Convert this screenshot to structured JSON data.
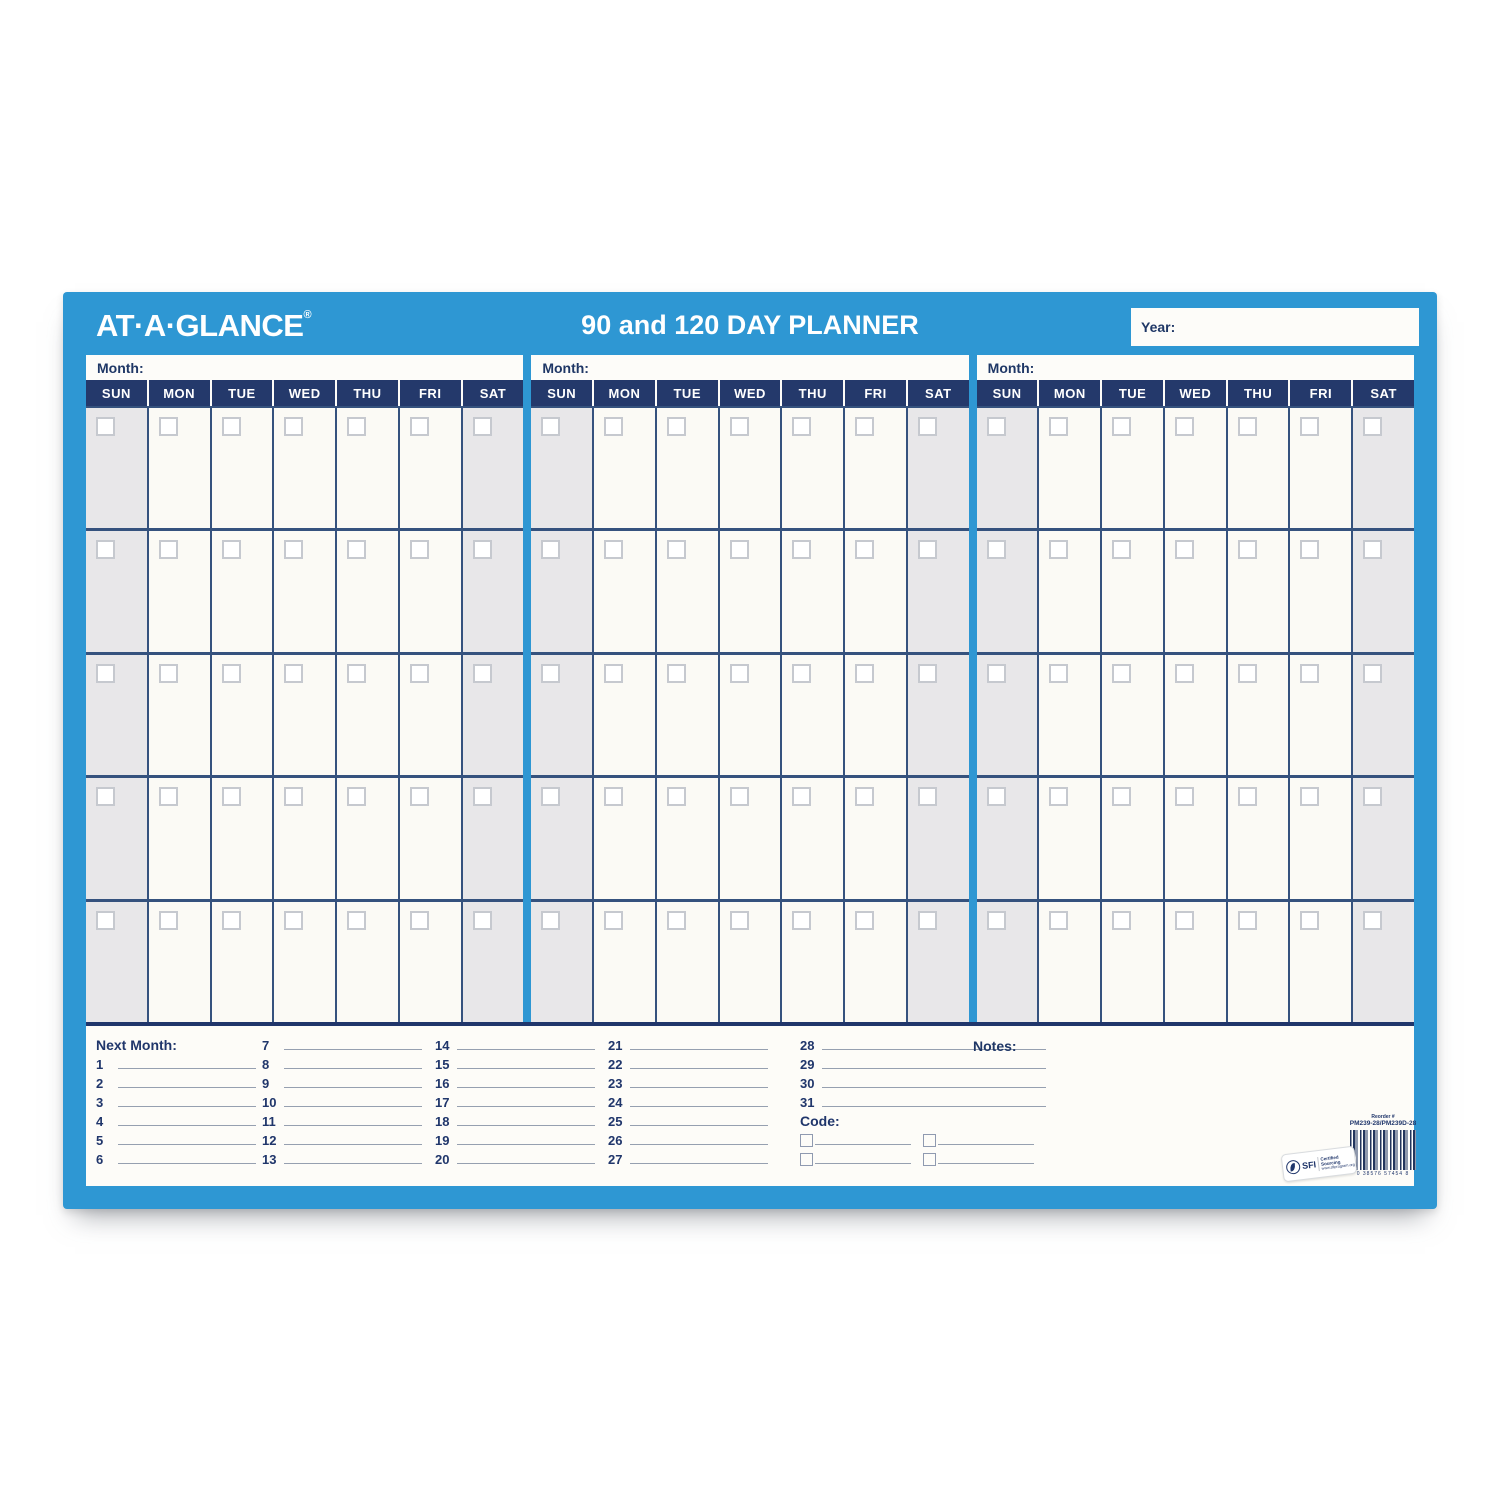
{
  "planner": {
    "brand": "AT·A·GLANCE",
    "brand_reg": "®",
    "title": "90 and 120 DAY PLANNER",
    "year_label": "Year:",
    "month_label": "Month:",
    "day_headers": [
      "SUN",
      "MON",
      "TUE",
      "WED",
      "THU",
      "FRI",
      "SAT"
    ],
    "months_count": 3,
    "weeks_per_month": 5,
    "colors": {
      "frame_blue": "#2e97d3",
      "header_navy": "#24396b",
      "grid_line_navy": "#35527e",
      "text_navy": "#1f3766",
      "weekend_gray": "#e8e7e9",
      "cell_white": "#fbfaf5"
    },
    "footer": {
      "columns": [
        {
          "header": "Next Month:",
          "numbers": [
            "1",
            "2",
            "3",
            "4",
            "5",
            "6"
          ]
        },
        {
          "numbers": [
            "7",
            "8",
            "9",
            "10",
            "11",
            "12",
            "13"
          ]
        },
        {
          "numbers": [
            "14",
            "15",
            "16",
            "17",
            "18",
            "19",
            "20"
          ]
        },
        {
          "numbers": [
            "21",
            "22",
            "23",
            "24",
            "25",
            "26",
            "27"
          ]
        },
        {
          "numbers": [
            "28",
            "29",
            "30",
            "31"
          ],
          "code_label": "Code:",
          "code_rows": 2
        }
      ],
      "notes_label": "Notes:",
      "reorder_label": "Reorder #",
      "reorder_number": "PM239-28/PM239D-28",
      "barcode_digits": "0 38576 57454 8",
      "sfi": {
        "name": "SFI",
        "line1": "Certified Sourcing",
        "line2": "www.sfiprogram.org"
      }
    }
  }
}
